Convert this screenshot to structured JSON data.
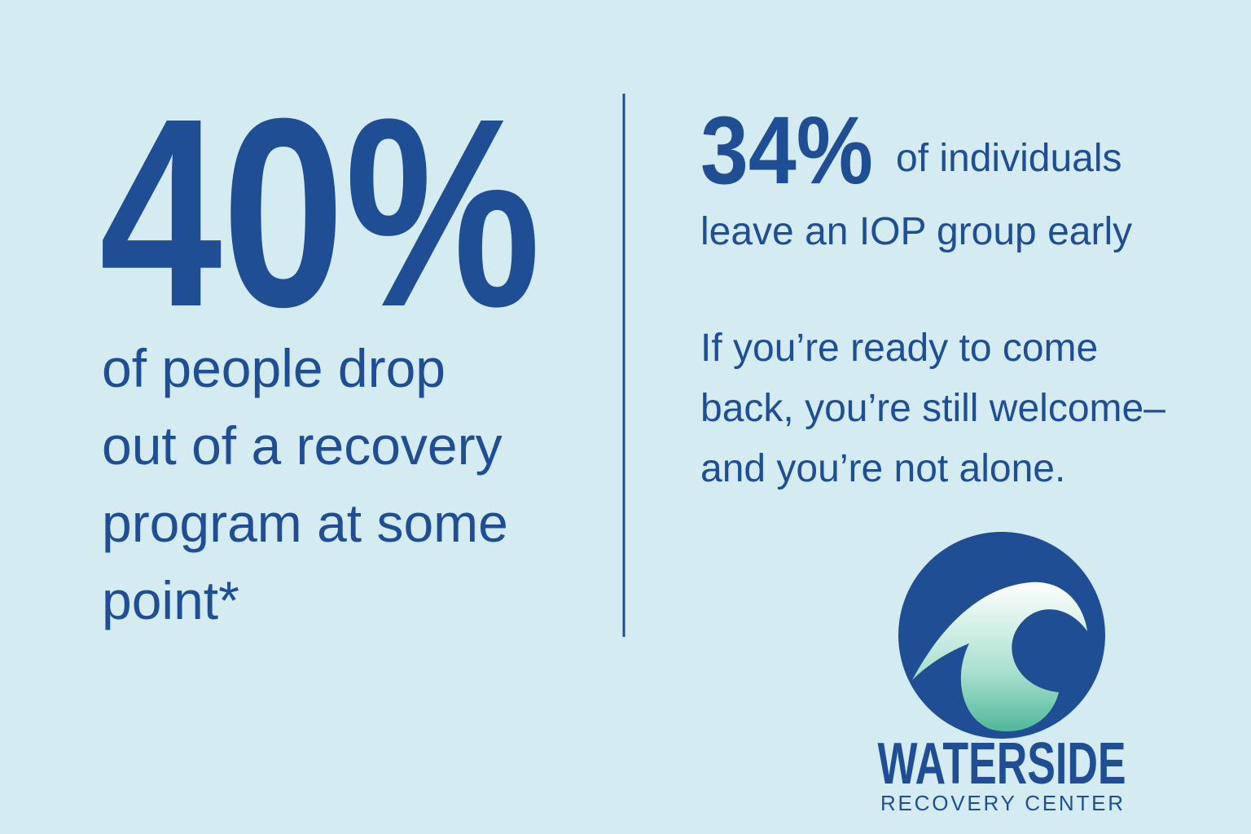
{
  "left": {
    "stat": "40%",
    "lines": [
      "of people drop",
      "out of a recovery",
      "program at some",
      "point*"
    ]
  },
  "right": {
    "stat": "34%",
    "stat_text": "of individuals",
    "stat_line2": "leave an IOP group early",
    "message": [
      "If you’re ready to come",
      "back, you’re still welcome–",
      "and you’re not alone."
    ]
  },
  "logo": {
    "name": "WATERSIDE",
    "subtitle": "RECOVERY CENTER"
  }
}
